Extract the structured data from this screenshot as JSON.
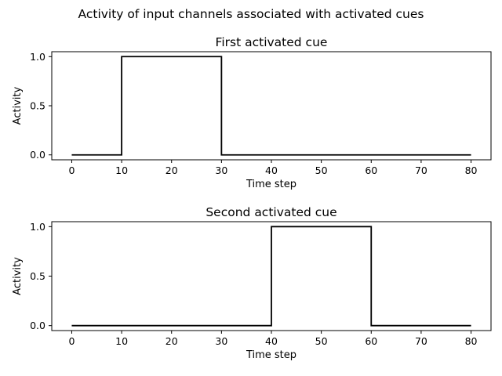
{
  "figure": {
    "suptitle": "Activity of input channels associated with activated cues"
  },
  "chart_data": [
    {
      "type": "line",
      "title": "First activated cue",
      "xlabel": "Time step",
      "ylabel": "Activity",
      "xlim": [
        -4,
        84
      ],
      "ylim": [
        -0.05,
        1.05
      ],
      "xticks": [
        0,
        10,
        20,
        30,
        40,
        50,
        60,
        70,
        80
      ],
      "xtick_labels": [
        "0",
        "10",
        "20",
        "30",
        "40",
        "50",
        "60",
        "70",
        "80"
      ],
      "yticks": [
        0.0,
        0.5,
        1.0
      ],
      "ytick_labels": [
        "0.0",
        "0.5",
        "1.0"
      ],
      "grid": false,
      "series": [
        {
          "color": "#000000",
          "x": [
            0,
            10,
            10,
            30,
            30,
            80
          ],
          "y": [
            0,
            0,
            1,
            1,
            0,
            0
          ]
        }
      ]
    },
    {
      "type": "line",
      "title": "Second activated cue",
      "xlabel": "Time step",
      "ylabel": "Activity",
      "xlim": [
        -4,
        84
      ],
      "ylim": [
        -0.05,
        1.05
      ],
      "xticks": [
        0,
        10,
        20,
        30,
        40,
        50,
        60,
        70,
        80
      ],
      "xtick_labels": [
        "0",
        "10",
        "20",
        "30",
        "40",
        "50",
        "60",
        "70",
        "80"
      ],
      "yticks": [
        0.0,
        0.5,
        1.0
      ],
      "ytick_labels": [
        "0.0",
        "0.5",
        "1.0"
      ],
      "grid": false,
      "series": [
        {
          "color": "#000000",
          "x": [
            0,
            40,
            40,
            60,
            60,
            80
          ],
          "y": [
            0,
            0,
            1,
            1,
            0,
            0
          ]
        }
      ]
    }
  ]
}
